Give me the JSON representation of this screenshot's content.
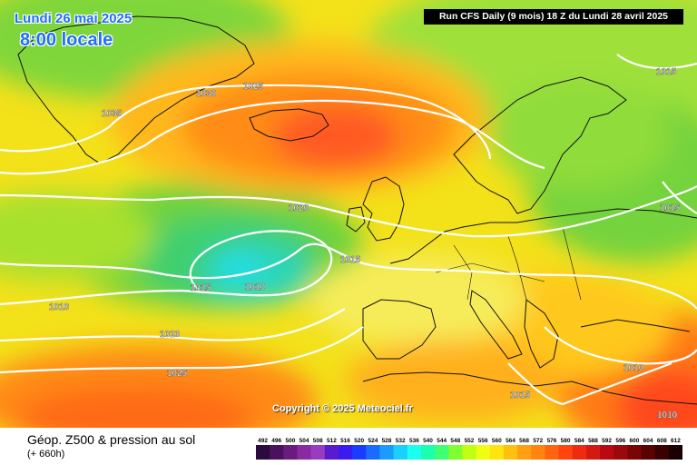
{
  "header": {
    "date": "Lundi 26 mai 2025",
    "time": "8:00 locale",
    "run": "Run CFS Daily (9 mois) 18 Z du Lundi 28 avril 2025"
  },
  "copyright": "Copyright © 2025 Meteociel.fr",
  "legend": {
    "title": "Géop. Z500 & pression au sol",
    "subtitle": "(+ 660h)",
    "scale_values": [
      "492",
      "496",
      "500",
      "504",
      "508",
      "512",
      "516",
      "520",
      "524",
      "528",
      "532",
      "536",
      "540",
      "544",
      "548",
      "552",
      "556",
      "560",
      "564",
      "568",
      "572",
      "576",
      "580",
      "584",
      "588",
      "592",
      "596",
      "600",
      "604",
      "608",
      "612"
    ],
    "scale_colors": [
      "#2b0a3d",
      "#4a125e",
      "#6a1b7e",
      "#8a2aa0",
      "#9a3cc0",
      "#5a1bd0",
      "#3a1bf0",
      "#1a3cff",
      "#1a6cff",
      "#1a9cff",
      "#1ad0ff",
      "#1afff0",
      "#1affb0",
      "#40ff70",
      "#80ff30",
      "#c0ff10",
      "#f0ff10",
      "#ffe410",
      "#ffc010",
      "#ffa010",
      "#ff8410",
      "#ff6410",
      "#ff4410",
      "#ee2a10",
      "#d41a10",
      "#b80a10",
      "#9a0a0a",
      "#7a0505",
      "#5a0303",
      "#3a0101",
      "#1a0000"
    ]
  },
  "isobars": [
    {
      "label": "1035"
    },
    {
      "label": "1030"
    },
    {
      "label": "1025"
    },
    {
      "label": "1020"
    },
    {
      "label": "1015"
    },
    {
      "label": "1010"
    },
    {
      "label": "1015"
    },
    {
      "label": "1010"
    },
    {
      "label": "1020"
    },
    {
      "label": "1025"
    },
    {
      "label": "1015"
    },
    {
      "label": "1015"
    },
    {
      "label": "1015"
    },
    {
      "label": "1010"
    },
    {
      "label": "1010"
    }
  ]
}
